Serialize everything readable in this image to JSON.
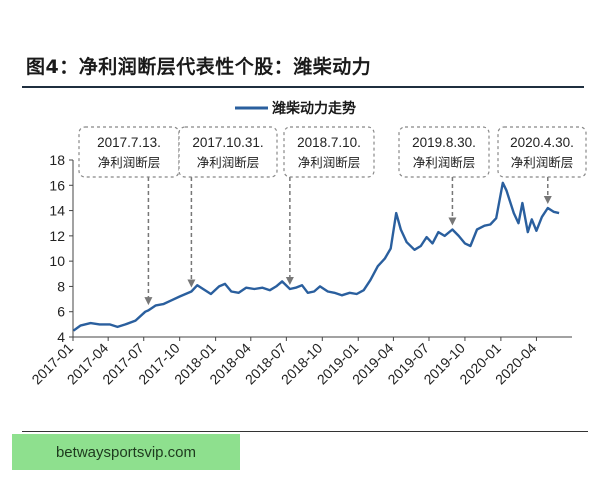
{
  "header": {
    "title": "图4：净利润断层代表性个股：潍柴动力"
  },
  "footer": {
    "badge_text": "betwaysportsvip.com"
  },
  "colors": {
    "line": "#2a5f9e",
    "annotation": "#777777"
  },
  "chart_data": {
    "type": "line",
    "x_tick_labels": [
      "2017-01",
      "2017-04",
      "2017-07",
      "2017-10",
      "2018-01",
      "2018-04",
      "2018-07",
      "2018-10",
      "2019-01",
      "2019-04",
      "2019-07",
      "2019-10",
      "2020-01",
      "2020-04"
    ],
    "ylim": [
      4,
      18
    ],
    "y_ticks": [
      4,
      6,
      8,
      10,
      12,
      14,
      16,
      18
    ],
    "grid": false,
    "legend_position": "top-center",
    "series": [
      {
        "name": "潍柴动力走势",
        "x": [
          "2017-01-02",
          "2017-01-20",
          "2017-02-15",
          "2017-03-10",
          "2017-04-05",
          "2017-04-25",
          "2017-05-15",
          "2017-06-10",
          "2017-07-05",
          "2017-07-13",
          "2017-08-01",
          "2017-08-20",
          "2017-09-10",
          "2017-10-01",
          "2017-10-31",
          "2017-11-15",
          "2017-11-30",
          "2017-12-20",
          "2018-01-10",
          "2018-01-25",
          "2018-02-10",
          "2018-03-01",
          "2018-03-20",
          "2018-04-10",
          "2018-05-01",
          "2018-05-20",
          "2018-06-05",
          "2018-06-20",
          "2018-07-10",
          "2018-07-25",
          "2018-08-10",
          "2018-08-25",
          "2018-09-10",
          "2018-09-25",
          "2018-10-15",
          "2018-11-01",
          "2018-11-20",
          "2018-12-10",
          "2018-12-28",
          "2019-01-15",
          "2019-02-01",
          "2019-02-20",
          "2019-03-10",
          "2019-03-25",
          "2019-04-08",
          "2019-04-20",
          "2019-05-05",
          "2019-05-25",
          "2019-06-10",
          "2019-06-25",
          "2019-07-10",
          "2019-07-25",
          "2019-08-10",
          "2019-08-30",
          "2019-09-15",
          "2019-10-01",
          "2019-10-15",
          "2019-11-01",
          "2019-11-20",
          "2019-12-05",
          "2019-12-20",
          "2020-01-06",
          "2020-01-15",
          "2020-02-03",
          "2020-02-15",
          "2020-02-25",
          "2020-03-10",
          "2020-03-20",
          "2020-04-01",
          "2020-04-15",
          "2020-04-30",
          "2020-05-15",
          "2020-05-29"
        ],
        "y": [
          4.5,
          4.9,
          5.1,
          5.0,
          5.0,
          4.8,
          5.0,
          5.3,
          6.0,
          6.1,
          6.5,
          6.6,
          6.9,
          7.2,
          7.6,
          8.1,
          7.8,
          7.4,
          8.0,
          8.2,
          7.6,
          7.5,
          7.9,
          7.8,
          7.9,
          7.7,
          8.0,
          8.4,
          7.8,
          7.9,
          8.1,
          7.5,
          7.6,
          8.0,
          7.6,
          7.5,
          7.3,
          7.5,
          7.4,
          7.7,
          8.5,
          9.6,
          10.2,
          11.0,
          13.8,
          12.5,
          11.5,
          10.9,
          11.2,
          11.9,
          11.4,
          12.3,
          12.0,
          12.5,
          12.0,
          11.4,
          11.2,
          12.5,
          12.8,
          12.9,
          13.4,
          16.2,
          15.6,
          13.8,
          13.0,
          14.6,
          12.3,
          13.3,
          12.4,
          13.5,
          14.2,
          13.9,
          13.8
        ]
      }
    ],
    "annotations": [
      {
        "date_line": "2017.7.13.",
        "label": "净利润断层",
        "x": "2017-07-13",
        "y": 6.2
      },
      {
        "date_line": "2017.10.31.",
        "label": "净利润断层",
        "x": "2017-10-31",
        "y": 7.6
      },
      {
        "date_line": "2018.7.10.",
        "label": "净利润断层",
        "x": "2018-07-10",
        "y": 7.8
      },
      {
        "date_line": "2019.8.30.",
        "label": "净利润断层",
        "x": "2019-08-30",
        "y": 12.5
      },
      {
        "date_line": "2020.4.30.",
        "label": "净利润断层",
        "x": "2020-04-30",
        "y": 14.2
      }
    ]
  }
}
